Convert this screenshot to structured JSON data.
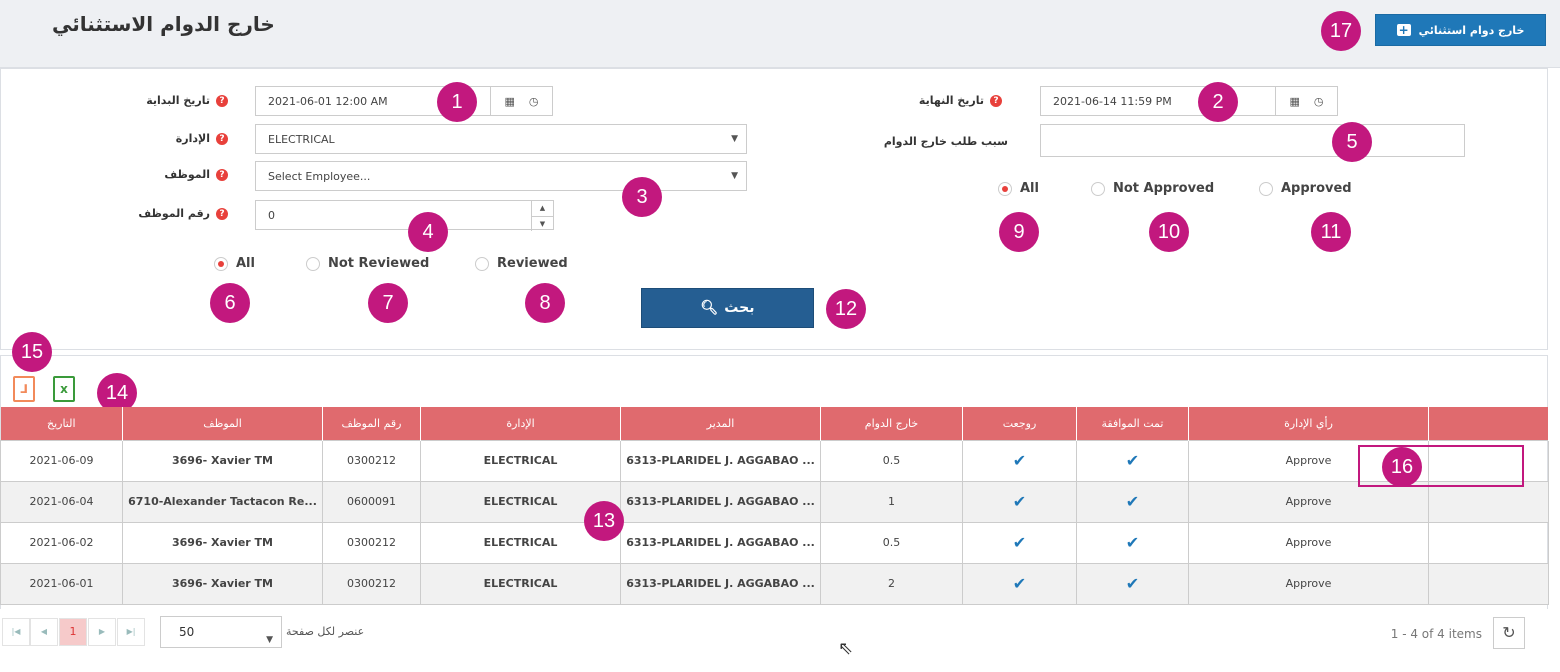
{
  "header": {
    "title": "خارج الدوام الاستثنائي",
    "add_button": "خارج دوام استثنائي"
  },
  "filters": {
    "start_date": {
      "label": "تاريخ البداية",
      "value": "2021-06-01 12:00 AM"
    },
    "end_date": {
      "label": "تاريخ النهاية",
      "value": "2021-06-14 11:59 PM"
    },
    "department": {
      "label": "الإدارة",
      "value": "ELECTRICAL"
    },
    "employee": {
      "label": "الموظف",
      "placeholder": "Select Employee..."
    },
    "employee_no": {
      "label": "رقم الموظف",
      "value": "0"
    },
    "reason": {
      "label": "سبب طلب خارج الدوام",
      "value": ""
    },
    "review_radios": [
      "All",
      "Not Reviewed",
      "Reviewed"
    ],
    "approve_radios": [
      "All",
      "Not Approved",
      "Approved"
    ],
    "search_button": "بحث"
  },
  "badges": [
    "1",
    "2",
    "3",
    "4",
    "5",
    "6",
    "7",
    "8",
    "9",
    "10",
    "11",
    "12",
    "13",
    "14",
    "15",
    "16",
    "17"
  ],
  "table": {
    "headers": [
      "التاريخ",
      "الموظف",
      "رقم الموظف",
      "الإدارة",
      "المدير",
      "خارج الدوام",
      "روجعت",
      "تمت الموافقة",
      "رأي الإدارة",
      ""
    ],
    "rows": [
      [
        "2021-06-09",
        "3696- Xavier TM",
        "0300212",
        "ELECTRICAL",
        "6313-PLARIDEL J. AGGABAO ...",
        "0.5",
        "✔",
        "✔",
        "Approve",
        ""
      ],
      [
        "2021-06-04",
        "6710-Alexander Tactacon Re...",
        "0600091",
        "ELECTRICAL",
        "6313-PLARIDEL J. AGGABAO ...",
        "1",
        "✔",
        "✔",
        "Approve",
        ""
      ],
      [
        "2021-06-02",
        "3696- Xavier TM",
        "0300212",
        "ELECTRICAL",
        "6313-PLARIDEL J. AGGABAO ...",
        "0.5",
        "✔",
        "✔",
        "Approve",
        ""
      ],
      [
        "2021-06-01",
        "3696- Xavier TM",
        "0300212",
        "ELECTRICAL",
        "6313-PLARIDEL J. AGGABAO ...",
        "2",
        "✔",
        "✔",
        "Approve",
        ""
      ]
    ]
  },
  "pager": {
    "current_page": "1",
    "page_size": "50",
    "page_size_label": "عنصر لكل صفحة",
    "items_info": "1 - 4 of 4 items"
  },
  "export": {
    "pdf_icon": "pdf-icon",
    "excel_icon": "excel-icon"
  }
}
